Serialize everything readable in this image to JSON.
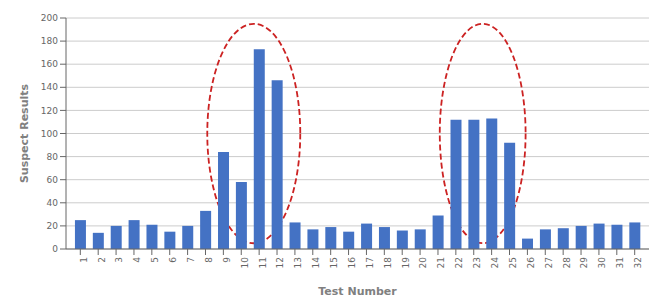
{
  "chart_data": {
    "type": "bar",
    "x": [
      1,
      2,
      3,
      4,
      5,
      6,
      7,
      8,
      9,
      10,
      11,
      12,
      13,
      14,
      15,
      16,
      17,
      18,
      19,
      20,
      21,
      22,
      23,
      24,
      25,
      26,
      27,
      28,
      29,
      30,
      31,
      32
    ],
    "values": [
      25,
      14,
      20,
      25,
      21,
      15,
      20,
      33,
      84,
      58,
      173,
      146,
      23,
      17,
      19,
      15,
      22,
      19,
      16,
      17,
      29,
      112,
      112,
      113,
      92,
      9,
      17,
      18,
      20,
      22,
      21,
      23
    ],
    "color": "#4472C4",
    "xlabel": "Test Number",
    "ylabel": "Suspect Results",
    "xlim": [
      0.2,
      32.8
    ],
    "xticks": [
      1,
      2,
      3,
      4,
      5,
      6,
      7,
      8,
      9,
      10,
      11,
      12,
      13,
      14,
      15,
      16,
      17,
      18,
      19,
      20,
      21,
      22,
      23,
      24,
      25,
      26,
      27,
      28,
      29,
      30,
      31,
      32
    ],
    "ylim": [
      0,
      200
    ],
    "yticks": [
      0,
      20,
      40,
      60,
      80,
      100,
      120,
      140,
      160,
      180,
      200
    ],
    "grid": true,
    "ellipses": [
      {
        "center_x": 10.7,
        "center_y": 100,
        "width": 5.2,
        "height": 190,
        "color": "#CC2222",
        "line_style": "dashed"
      },
      {
        "center_x": 23.5,
        "center_y": 100,
        "width": 4.8,
        "height": 190,
        "color": "#CC2222",
        "line_style": "dashed"
      }
    ]
  }
}
